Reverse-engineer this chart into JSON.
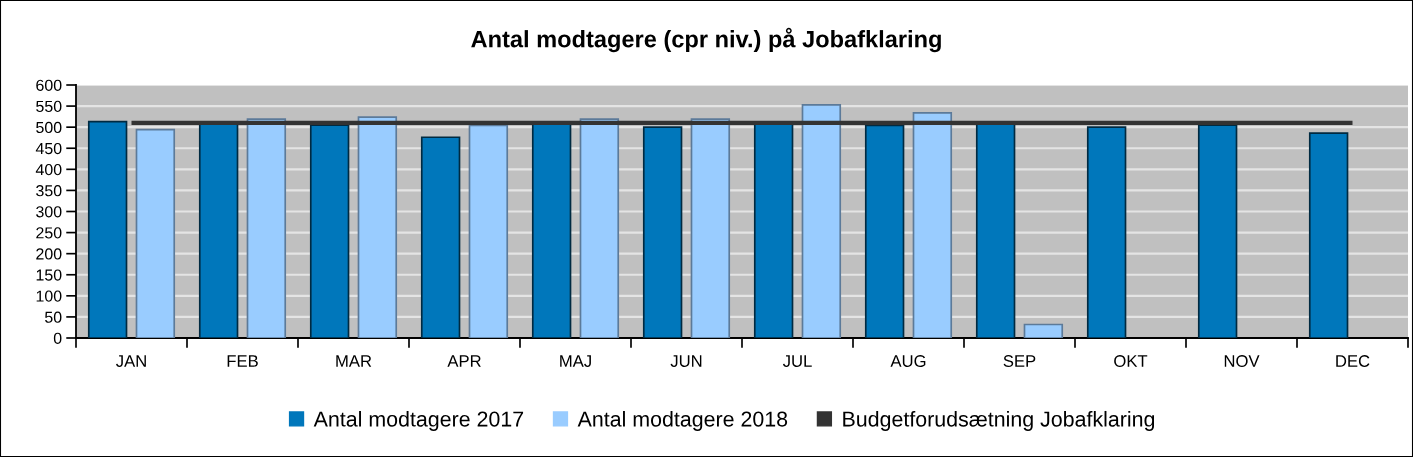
{
  "chart_data": {
    "type": "bar",
    "title": "Antal modtagere (cpr niv.) på Jobafklaring",
    "categories": [
      "JAN",
      "FEB",
      "MAR",
      "APR",
      "MAJ",
      "JUN",
      "JUL",
      "AUG",
      "SEP",
      "OKT",
      "NOV",
      "DEC"
    ],
    "series": [
      {
        "name": "Antal modtagere 2017",
        "color": "#0077bb",
        "values": [
          513,
          509,
          505,
          476,
          508,
          500,
          509,
          504,
          508,
          500,
          505,
          486
        ]
      },
      {
        "name": "Antal modtagere 2018",
        "color": "#99ccff",
        "values": [
          494,
          519,
          524,
          504,
          519,
          519,
          553,
          534,
          32,
          null,
          null,
          null
        ]
      },
      {
        "name": "Budgetforudsætning Jobafklaring",
        "type": "line",
        "color": "#333333",
        "values": [
          510,
          510,
          510,
          510,
          510,
          510,
          510,
          510,
          510,
          510,
          510,
          510
        ]
      }
    ],
    "ylim": [
      0,
      600
    ],
    "yticks": [
      0,
      50,
      100,
      150,
      200,
      250,
      300,
      350,
      400,
      450,
      500,
      550,
      600
    ],
    "grid": "y",
    "legend": "bottom"
  }
}
